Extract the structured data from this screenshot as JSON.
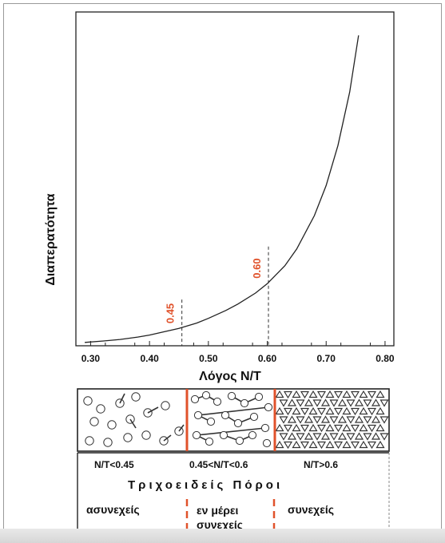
{
  "chart_data": {
    "type": "line",
    "xlabel": "Λόγος N/T",
    "ylabel": "Διαπερατότητα",
    "xlim": [
      0.275,
      0.815
    ],
    "x_ticks": [
      "0.30",
      "0.40",
      "0.50",
      "0.60",
      "0.70",
      "0.80"
    ],
    "x_tick_values": [
      0.3,
      0.4,
      0.5,
      0.6,
      0.7,
      0.8
    ],
    "series": [
      {
        "x": [
          0.29,
          0.32,
          0.35,
          0.38,
          0.4,
          0.42,
          0.45,
          0.48,
          0.5,
          0.53,
          0.55,
          0.58,
          0.6,
          0.63,
          0.65,
          0.68,
          0.7,
          0.72,
          0.74,
          0.755
        ],
        "y": [
          0.01,
          0.014,
          0.019,
          0.026,
          0.032,
          0.04,
          0.052,
          0.068,
          0.082,
          0.106,
          0.125,
          0.158,
          0.186,
          0.24,
          0.29,
          0.39,
          0.48,
          0.6,
          0.76,
          0.93
        ]
      }
    ],
    "annotations": [
      {
        "text": "0.45",
        "x": 0.455
      },
      {
        "text": "0.60",
        "x": 0.602
      }
    ],
    "grid": false,
    "line_color": "#222222",
    "marker_color": "#e0522b"
  },
  "schematic": {
    "ranges": [
      "N/T<0.45",
      "0.45<N/T<0.6",
      "N/T>0.6"
    ],
    "title": "Τριχοειδείς Πόροι",
    "categories": [
      "ασυνεχείς",
      "εν μέρει συνεχείς",
      "συνεχείς"
    ],
    "divider_color": "#e0522b"
  }
}
